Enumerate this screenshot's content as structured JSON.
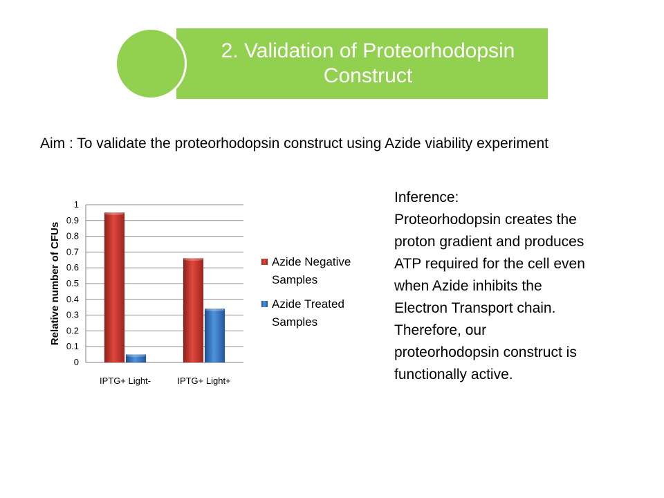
{
  "slide": {
    "title_line1": "2. Validation of Proteorhodopsin",
    "title_line2": "Construct",
    "aim": "Aim : To validate the proteorhodopsin construct using Azide viability experiment",
    "inference_lines": [
      "Inference:",
      "Proteorhodopsin creates the",
      "proton gradient and produces",
      "ATP required for the cell even",
      "when Azide inhibits the",
      "Electron Transport chain.",
      "Therefore, our",
      "proteorhodopsin construct is",
      "functionally active."
    ],
    "colors": {
      "banner": "#92d050"
    }
  },
  "chart_data": {
    "type": "bar",
    "categories": [
      "IPTG+ Light-",
      "IPTG+ Light+"
    ],
    "series": [
      {
        "name": "Azide Negative Samples",
        "legend_lines": [
          "Azide Negative",
          "Samples"
        ],
        "color": "#c0392b",
        "values": [
          0.95,
          0.66
        ]
      },
      {
        "name": "Azide Treated Samples",
        "legend_lines": [
          "Azide Treated",
          "Samples"
        ],
        "color": "#3a78c2",
        "values": [
          0.05,
          0.34
        ]
      }
    ],
    "ylabel": "Relative number of CFUs",
    "ylim": [
      0,
      1
    ],
    "yticks": [
      "0",
      "0.1",
      "0.2",
      "0.3",
      "0.4",
      "0.5",
      "0.6",
      "0.7",
      "0.8",
      "0.9",
      "1"
    ],
    "grid": true,
    "legend_position": "right"
  }
}
